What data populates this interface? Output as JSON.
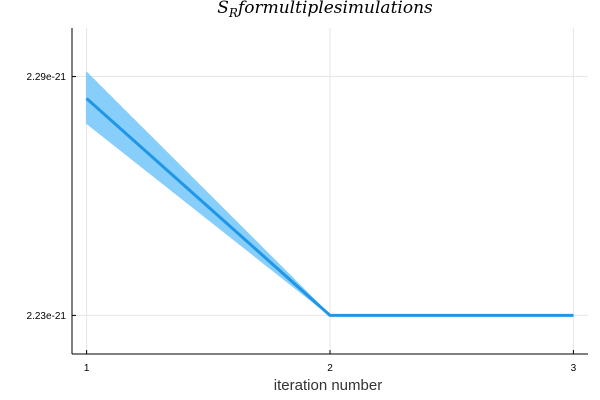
{
  "chart_data": {
    "type": "line",
    "title": "S_R for multiple simulations",
    "xlabel": "iteration number",
    "ylabel": "",
    "x": [
      1,
      2,
      3
    ],
    "x_ticks": [
      "1",
      "2",
      "3"
    ],
    "y_ticks": [
      {
        "label": "2.29e-21",
        "value": 2.29e-21
      },
      {
        "label": "2.23e-21",
        "value": 2.23e-21
      }
    ],
    "xlim": [
      0.94,
      3.06
    ],
    "ylim": [
      2.2203e-21,
      2.3022e-21
    ],
    "series": [
      {
        "name": "",
        "mean": [
          2.2845e-21,
          2.23e-21,
          2.23e-21
        ],
        "lower": [
          2.2783e-21,
          2.23e-21,
          2.23e-21
        ],
        "upper": [
          2.291e-21,
          2.23e-21,
          2.23e-21
        ],
        "color": "#1f96e6",
        "band_color": "#87cefa"
      }
    ],
    "grid": true,
    "legend": "none"
  }
}
